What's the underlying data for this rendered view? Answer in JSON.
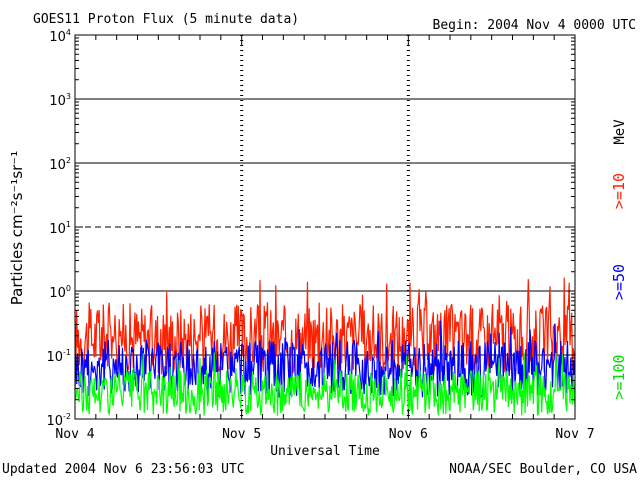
{
  "chart_data": {
    "type": "line",
    "title": "GOES11 Proton Flux (5 minute data)",
    "begin_label": "Begin: 2004 Nov 4 0000 UTC",
    "xlabel": "Universal Time",
    "ylabel": "Particles cm⁻²s⁻¹sr⁻¹",
    "y_scale": "log",
    "ylim": [
      0.01,
      10000
    ],
    "y_ticks": [
      {
        "base": "10",
        "exp": "4",
        "value": 10000
      },
      {
        "base": "10",
        "exp": "3",
        "value": 1000
      },
      {
        "base": "10",
        "exp": "2",
        "value": 100
      },
      {
        "base": "10",
        "exp": "1",
        "value": 10
      },
      {
        "base": "10",
        "exp": "0",
        "value": 1
      },
      {
        "base": "10",
        "exp": "-1",
        "value": 0.1
      },
      {
        "base": "10",
        "exp": "-2",
        "value": 0.01
      }
    ],
    "x_ticks": [
      {
        "label": "Nov 4",
        "day": 0
      },
      {
        "label": "Nov 5",
        "day": 1
      },
      {
        "label": "Nov 6",
        "day": 2
      },
      {
        "label": "Nov 7",
        "day": 3
      }
    ],
    "xlim_days": [
      0,
      3
    ],
    "reference_lines": [
      {
        "value": 1000,
        "style": "solid"
      },
      {
        "value": 100,
        "style": "solid"
      },
      {
        "value": 10,
        "style": "dashed"
      },
      {
        "value": 1,
        "style": "solid"
      },
      {
        "value": 0.1,
        "style": "solid"
      }
    ],
    "series": [
      {
        "name": ">=10",
        "color": "#ff2000",
        "x_days": [
          0,
          0.25,
          0.5,
          0.75,
          1,
          1.25,
          1.5,
          1.75,
          2,
          2.25,
          2.5,
          2.75,
          3
        ],
        "values": [
          0.18,
          0.2,
          0.17,
          0.19,
          0.18,
          0.17,
          0.19,
          0.18,
          0.17,
          0.19,
          0.18,
          0.17,
          0.2
        ]
      },
      {
        "name": ">=50",
        "color": "#0000ff",
        "x_days": [
          0,
          0.25,
          0.5,
          0.75,
          1,
          1.25,
          1.5,
          1.75,
          2,
          2.25,
          2.5,
          2.75,
          3
        ],
        "values": [
          0.06,
          0.07,
          0.065,
          0.06,
          0.065,
          0.06,
          0.062,
          0.064,
          0.06,
          0.062,
          0.06,
          0.064,
          0.07
        ]
      },
      {
        "name": ">=100",
        "color": "#00ff00",
        "x_days": [
          0,
          0.25,
          0.5,
          0.75,
          1,
          1.25,
          1.5,
          1.75,
          2,
          2.25,
          2.5,
          2.75,
          3
        ],
        "values": [
          0.025,
          0.027,
          0.026,
          0.025,
          0.026,
          0.025,
          0.026,
          0.025,
          0.026,
          0.025,
          0.026,
          0.025,
          0.027
        ]
      }
    ],
    "unit_label": "MeV",
    "grid": false
  },
  "footer": {
    "updated": "Updated 2004 Nov  6 23:56:03 UTC",
    "source": "NOAA/SEC Boulder, CO USA"
  }
}
